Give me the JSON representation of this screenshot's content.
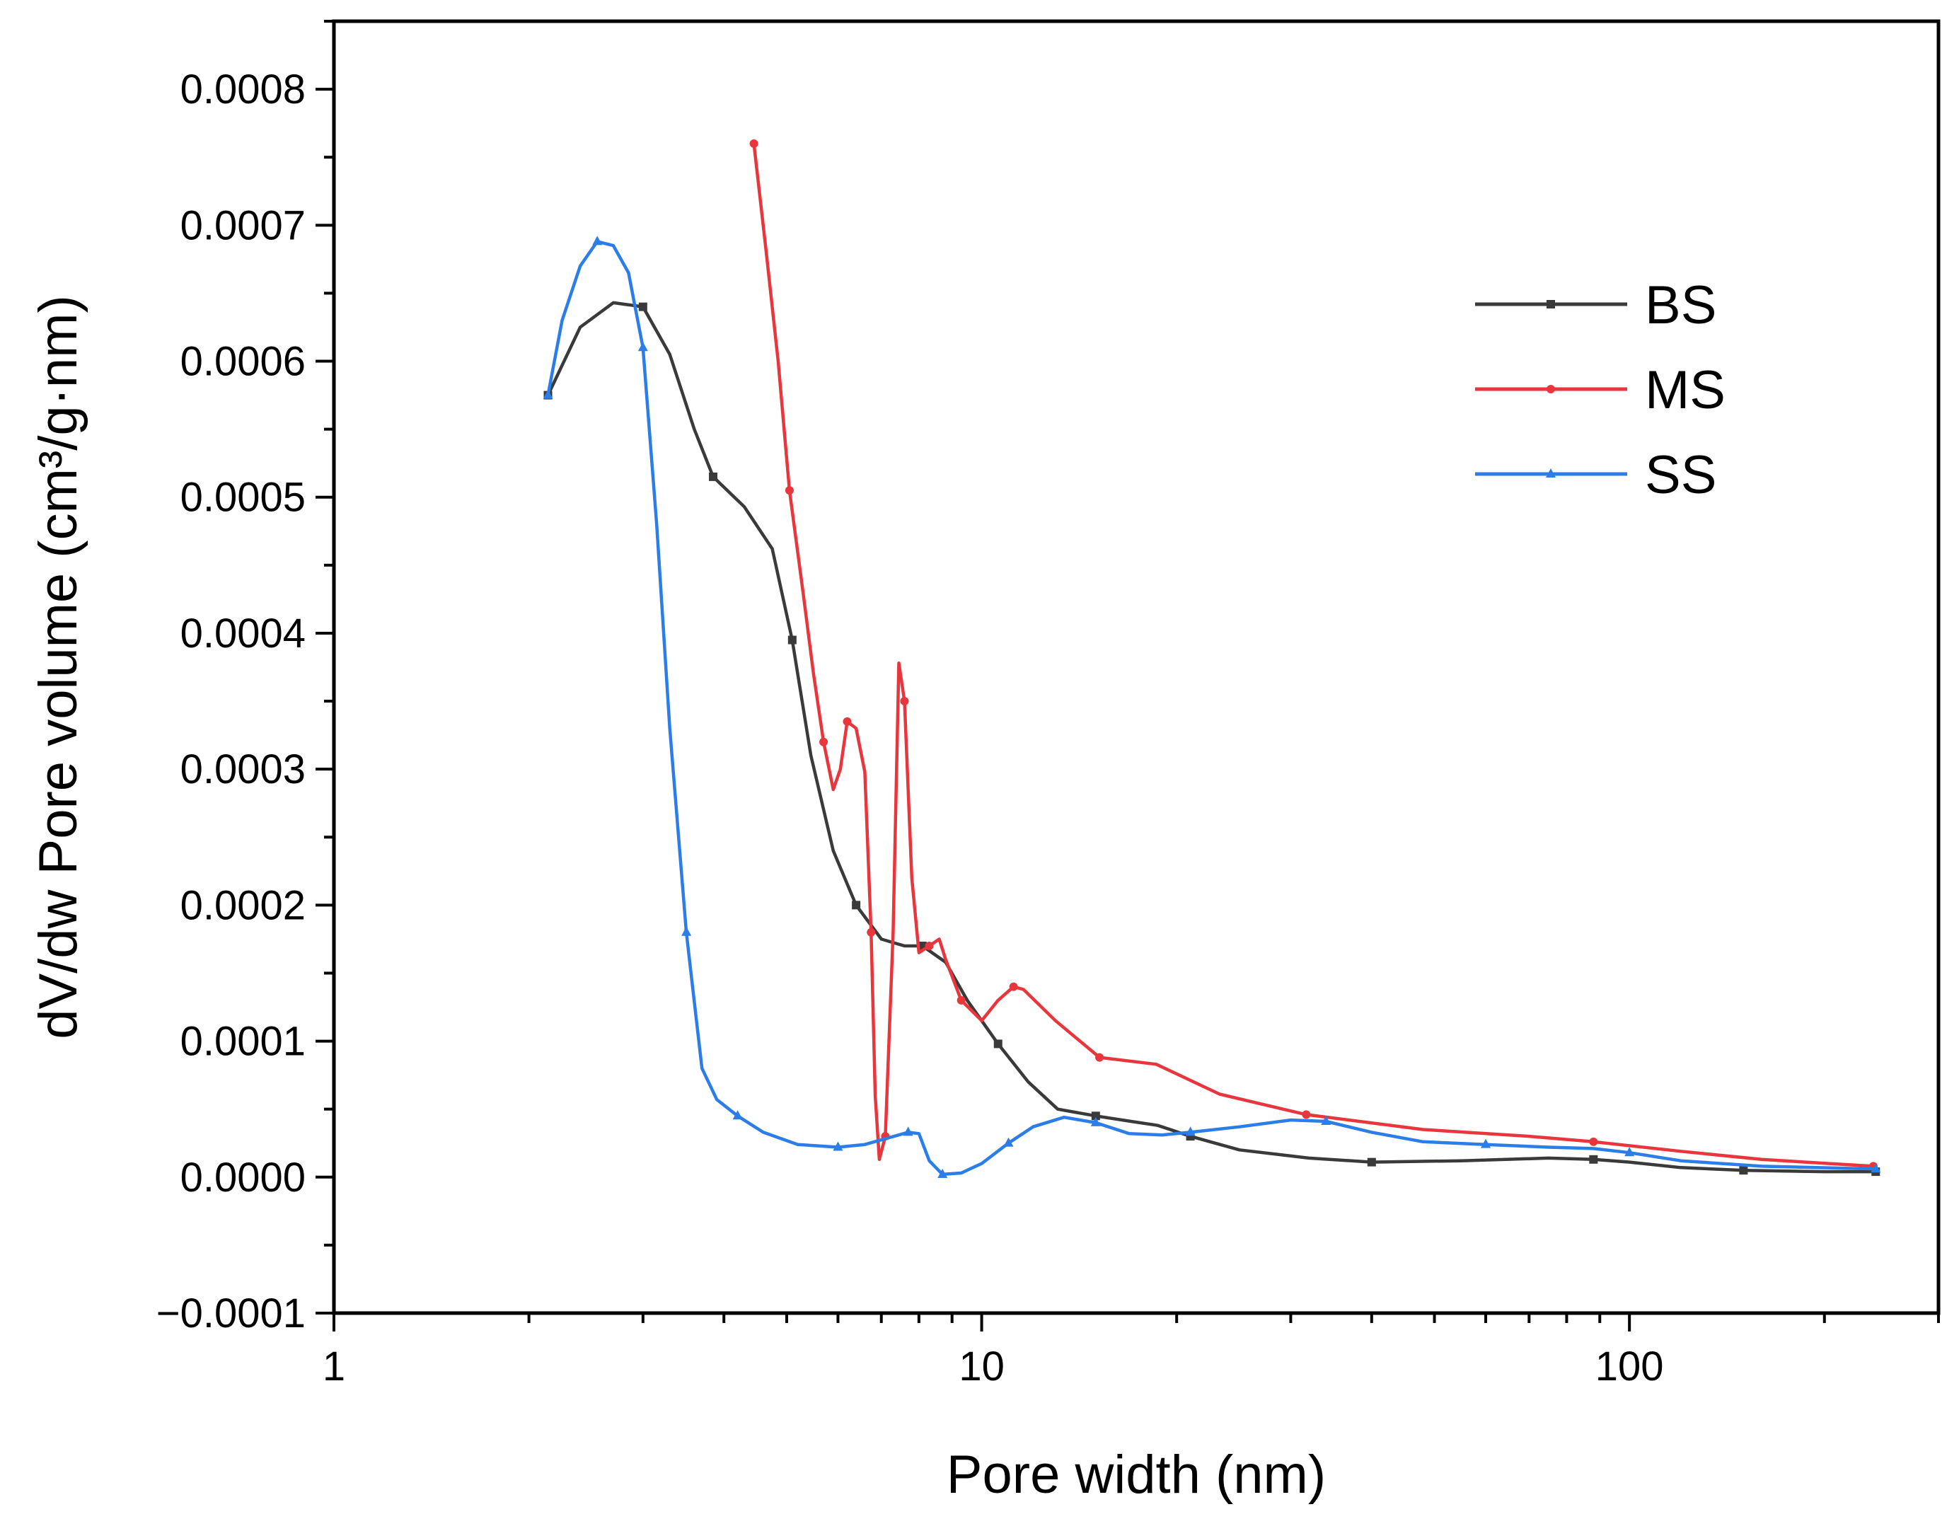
{
  "chart_data": {
    "type": "line",
    "title": "",
    "xlabel": "Pore width (nm)",
    "ylabel": "dV/dw Pore volume (cm³/g·nm)",
    "xscale": "log",
    "xlim": [
      1,
      300
    ],
    "ylim": [
      -0.0001,
      0.00085
    ],
    "x_ticks": [
      1,
      10,
      100
    ],
    "x_tick_labels": [
      "1",
      "10",
      "100"
    ],
    "y_ticks": [
      -0.0001,
      0.0,
      0.0001,
      0.0002,
      0.0003,
      0.0004,
      0.0005,
      0.0006,
      0.0007,
      0.0008
    ],
    "y_tick_labels": [
      "−0.0001",
      "0.0000",
      "0.0001",
      "0.0002",
      "0.0003",
      "0.0004",
      "0.0005",
      "0.0006",
      "0.0007",
      "0.0008"
    ],
    "grid": false,
    "legend": "top-right",
    "series": [
      {
        "name": "BS",
        "color": "#3a3a3a",
        "marker": "square",
        "x": [
          2.14,
          2.4,
          2.7,
          3.0,
          3.3,
          3.6,
          3.85,
          4.3,
          4.75,
          5.1,
          5.45,
          5.9,
          6.4,
          7.0,
          7.6,
          8.1,
          8.8,
          9.5,
          10.6,
          11.8,
          13.1,
          15.0,
          17.0,
          18.7,
          21.0,
          25.0,
          32.0,
          40.0,
          55.0,
          75.0,
          88.0,
          100.0,
          120.0,
          150.0,
          200.0,
          240.0
        ],
        "y": [
          0.000575,
          0.000625,
          0.000643,
          0.00064,
          0.000605,
          0.00055,
          0.000515,
          0.000493,
          0.000462,
          0.000395,
          0.00031,
          0.00024,
          0.0002,
          0.000175,
          0.00017,
          0.00017,
          0.000158,
          0.00013,
          9.8e-05,
          7e-05,
          5e-05,
          4.5e-05,
          4.1e-05,
          3.8e-05,
          3e-05,
          2e-05,
          1.4e-05,
          1.1e-05,
          1.2e-05,
          1.4e-05,
          1.3e-05,
          1.1e-05,
          7e-06,
          5e-06,
          4e-06,
          4e-06
        ]
      },
      {
        "name": "MS",
        "color": "#e8363c",
        "marker": "circle",
        "x": [
          4.45,
          4.65,
          4.85,
          5.05,
          5.3,
          5.5,
          5.7,
          5.9,
          6.05,
          6.2,
          6.4,
          6.6,
          6.75,
          6.85,
          6.95,
          7.1,
          7.3,
          7.45,
          7.6,
          7.8,
          8.0,
          8.3,
          8.6,
          8.8,
          9.3,
          10.0,
          10.6,
          11.2,
          11.6,
          13.0,
          15.2,
          18.6,
          23.3,
          31.7,
          48.0,
          70.0,
          88.0,
          120.0,
          160.0,
          238.0
        ],
        "y": [
          0.00076,
          0.00068,
          0.0006,
          0.000505,
          0.00043,
          0.00037,
          0.00032,
          0.000285,
          0.0003,
          0.000335,
          0.00033,
          0.000298,
          0.00018,
          6e-05,
          1.3e-05,
          3e-05,
          0.00018,
          0.000378,
          0.00035,
          0.00022,
          0.000165,
          0.00017,
          0.000175,
          0.00016,
          0.00013,
          0.000115,
          0.00013,
          0.00014,
          0.000138,
          0.000115,
          8.8e-05,
          8.3e-05,
          6.1e-05,
          4.6e-05,
          3.5e-05,
          3e-05,
          2.6e-05,
          1.9e-05,
          1.3e-05,
          8e-06
        ]
      },
      {
        "name": "SS",
        "color": "#2b7de9",
        "marker": "triangle",
        "x": [
          2.14,
          2.25,
          2.4,
          2.55,
          2.7,
          2.85,
          3.0,
          3.15,
          3.3,
          3.5,
          3.7,
          3.9,
          4.2,
          4.6,
          5.2,
          6.0,
          6.6,
          7.2,
          7.7,
          8.0,
          8.3,
          8.7,
          9.3,
          10.0,
          11.0,
          12.0,
          13.4,
          15.0,
          16.9,
          19.0,
          21.0,
          25.0,
          30.0,
          34.0,
          40.0,
          48.0,
          60.0,
          75.0,
          88.0,
          100.0,
          120.0,
          160.0,
          240.0
        ],
        "y": [
          0.000575,
          0.00063,
          0.00067,
          0.000688,
          0.000685,
          0.000665,
          0.00061,
          0.00048,
          0.00033,
          0.00018,
          8e-05,
          5.7e-05,
          4.5e-05,
          3.3e-05,
          2.4e-05,
          2.2e-05,
          2.4e-05,
          2.9e-05,
          3.3e-05,
          3.2e-05,
          1.2e-05,
          2e-06,
          3e-06,
          1e-05,
          2.5e-05,
          3.7e-05,
          4.4e-05,
          4e-05,
          3.2e-05,
          3.1e-05,
          3.3e-05,
          3.7e-05,
          4.2e-05,
          4.1e-05,
          3.3e-05,
          2.6e-05,
          2.4e-05,
          2.2e-05,
          2.1e-05,
          1.8e-05,
          1.2e-05,
          8e-06,
          6e-06
        ]
      }
    ]
  }
}
